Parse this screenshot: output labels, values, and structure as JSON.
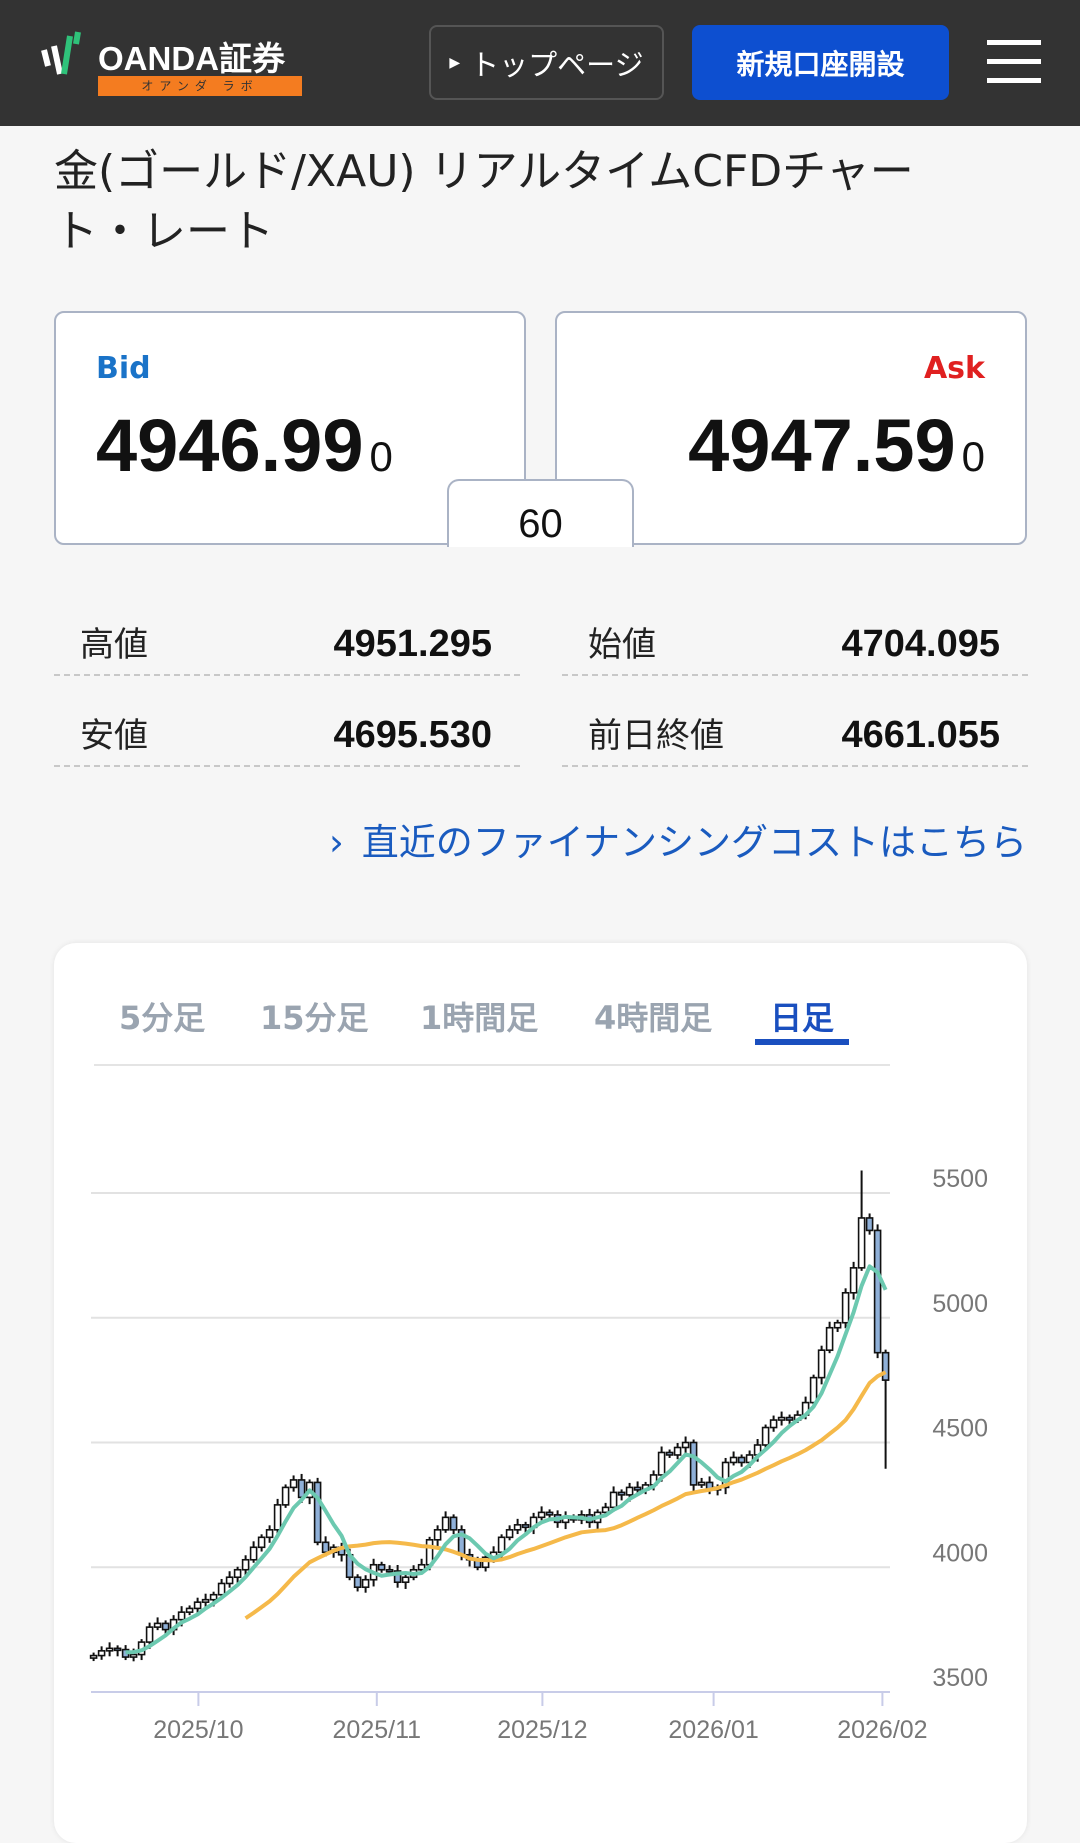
{
  "header": {
    "logo_text": "OANDA証券",
    "logo_sub": "オアンダ ラボ",
    "top_page_label": "トップページ",
    "open_account_label": "新規口座開設"
  },
  "title": "金(ゴールド/XAU) リアルタイムCFDチャート・レート",
  "bid": {
    "label": "Bid",
    "price": "4946.99",
    "sub_digit": "0"
  },
  "ask": {
    "label": "Ask",
    "price": "4947.59",
    "sub_digit": "0"
  },
  "spread": "60",
  "stats": [
    {
      "label": "高値",
      "value": "4951.295"
    },
    {
      "label": "始値",
      "value": "4704.095"
    },
    {
      "label": "安値",
      "value": "4695.530"
    },
    {
      "label": "前日終値",
      "value": "4661.055"
    }
  ],
  "financing_link": "直近のファイナンシングコストはこちら",
  "tabs": [
    {
      "label": "5分足"
    },
    {
      "label": "15分足"
    },
    {
      "label": "1時間足"
    },
    {
      "label": "4時間足"
    },
    {
      "label": "日足",
      "active": true
    }
  ],
  "colors": {
    "header_bg": "#333333",
    "accent": "#0d4fd0",
    "bid": "#1a73c8",
    "ask": "#e02020",
    "ma_short": "#6cc9b0",
    "ma_long": "#f5b94a",
    "bear_body": "#8fb0d8",
    "bull_body": "#ffffff"
  },
  "chart_data": {
    "type": "candlestick",
    "y_ticks": [
      5500,
      5000,
      4500,
      4000,
      3500
    ],
    "ylim": [
      3500,
      5500
    ],
    "x_ticks": [
      "2025/10",
      "2025/11",
      "2025/12",
      "2026/01",
      "2026/02"
    ],
    "close": [
      3646,
      3665,
      3675,
      3670,
      3640,
      3650,
      3700,
      3760,
      3775,
      3750,
      3790,
      3820,
      3835,
      3860,
      3870,
      3890,
      3935,
      3960,
      3990,
      4030,
      4080,
      4120,
      4150,
      4250,
      4320,
      4350,
      4280,
      4340,
      4100,
      4060,
      4080,
      4050,
      3960,
      3920,
      3950,
      4010,
      3990,
      3985,
      3940,
      3960,
      3990,
      4010,
      4110,
      4150,
      4200,
      4150,
      4050,
      4030,
      4000,
      4040,
      4060,
      4120,
      4150,
      4170,
      4160,
      4200,
      4220,
      4210,
      4180,
      4200,
      4190,
      4210,
      4180,
      4220,
      4240,
      4300,
      4290,
      4320,
      4310,
      4330,
      4370,
      4460,
      4450,
      4480,
      4500,
      4330,
      4340,
      4310,
      4320,
      4420,
      4440,
      4420,
      4450,
      4490,
      4560,
      4590,
      4600,
      4590,
      4610,
      4660,
      4760,
      4870,
      4960,
      4980,
      5100,
      5200,
      5400,
      5350,
      4860,
      4750
    ],
    "period_high": 5590,
    "period_low_last": 4395,
    "moving_averages": [
      {
        "period": 5
      },
      {
        "period": 20
      }
    ],
    "grid": true
  }
}
